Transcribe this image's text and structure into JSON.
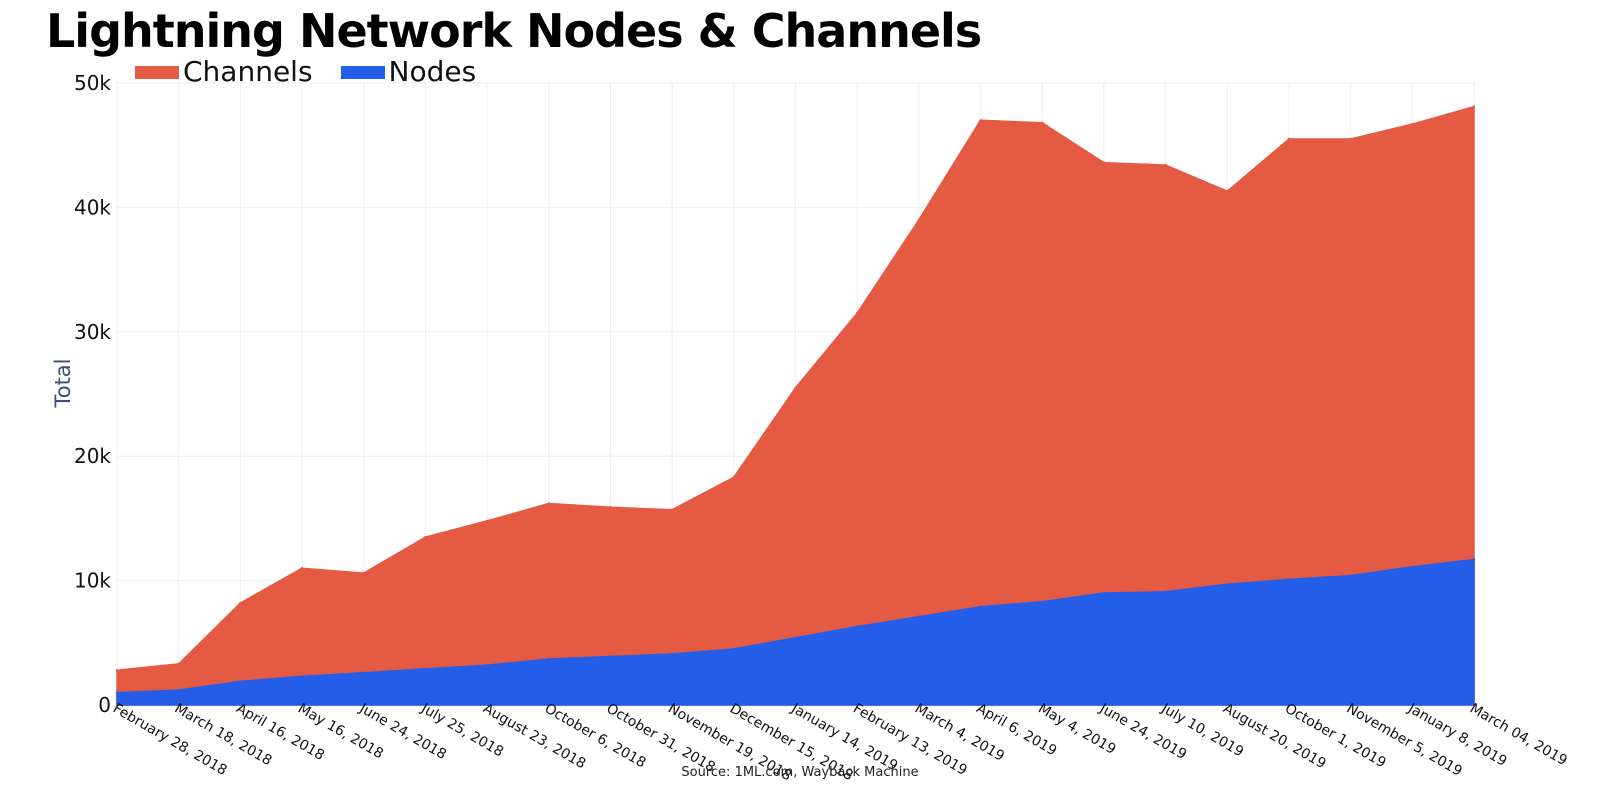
{
  "chart_data": {
    "type": "area",
    "stacked": false,
    "title": "Lightning Network Nodes & Channels",
    "xlabel": "",
    "ylabel": "Total",
    "ylim": [
      0,
      50000
    ],
    "yticks": [
      0,
      10000,
      20000,
      30000,
      40000,
      50000
    ],
    "ytick_labels": [
      "0",
      "10k",
      "20k",
      "30k",
      "40k",
      "50k"
    ],
    "grid": true,
    "legend_placement": "top-left",
    "source": "Source: 1ML.com, Wayback Machine",
    "x": [
      "February 28, 2018",
      "March 18, 2018",
      "April 16, 2018",
      "May 16, 2018",
      "June 24, 2018",
      "July 25, 2018",
      "August 23, 2018",
      "October 6, 2018",
      "October 31, 2018",
      "November 19, 2018",
      "December 15, 2018",
      "January 14, 2019",
      "February 13, 2019",
      "March 4, 2019",
      "April 6, 2019",
      "May 4, 2019",
      "June 24, 2019",
      "July 10, 2019",
      "August 20, 2019",
      "October 1, 2019",
      "November 5, 2019",
      "January 8, 2019",
      "March 04, 2019"
    ],
    "series": [
      {
        "name": "Channels",
        "color": "#e55a43",
        "values": [
          2800,
          3300,
          8200,
          11000,
          10600,
          13500,
          14800,
          16200,
          15900,
          15700,
          18300,
          25500,
          31500,
          39000,
          47000,
          46800,
          43600,
          43400,
          41300,
          45500,
          45500,
          46700,
          48100
        ]
      },
      {
        "name": "Nodes",
        "color": "#245de8",
        "values": [
          1000,
          1200,
          1900,
          2300,
          2600,
          2900,
          3200,
          3700,
          3900,
          4100,
          4500,
          5400,
          6300,
          7100,
          7900,
          8300,
          9000,
          9100,
          9700,
          10100,
          10400,
          11100,
          11700
        ]
      }
    ]
  }
}
